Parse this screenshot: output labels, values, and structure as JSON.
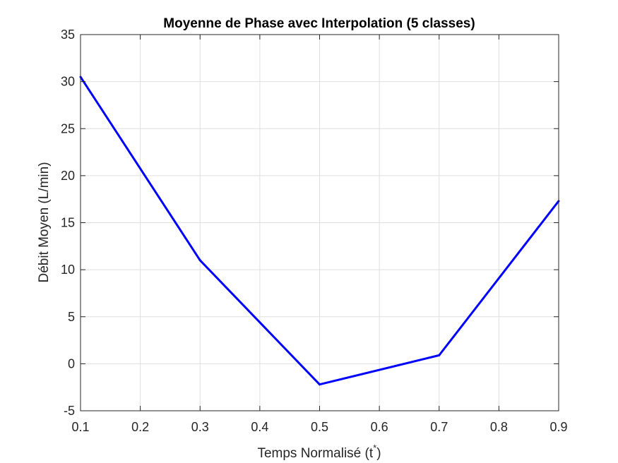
{
  "chart_data": {
    "type": "line",
    "title": "Moyenne de Phase avec Interpolation (5 classes)",
    "xlabel_main": "Temps Normalisé (t",
    "xlabel_sup": "*",
    "xlabel_end": ")",
    "ylabel": "Débit Moyen (L/min)",
    "xlim": [
      0.1,
      0.9
    ],
    "ylim": [
      -5,
      35
    ],
    "xticks": [
      0.1,
      0.2,
      0.3,
      0.4,
      0.5,
      0.6,
      0.7,
      0.8,
      0.9
    ],
    "yticks": [
      -5,
      0,
      5,
      10,
      15,
      20,
      25,
      30,
      35
    ],
    "xtick_labels": [
      "0.1",
      "0.2",
      "0.3",
      "0.4",
      "0.5",
      "0.6",
      "0.7",
      "0.8",
      "0.9"
    ],
    "ytick_labels": [
      "-5",
      "0",
      "5",
      "10",
      "15",
      "20",
      "25",
      "30",
      "35"
    ],
    "grid": true,
    "series": [
      {
        "color": "#0000ff",
        "x": [
          0.1,
          0.3,
          0.5,
          0.7,
          0.9
        ],
        "y": [
          30.5,
          11.0,
          -2.2,
          0.9,
          17.3
        ]
      }
    ]
  }
}
